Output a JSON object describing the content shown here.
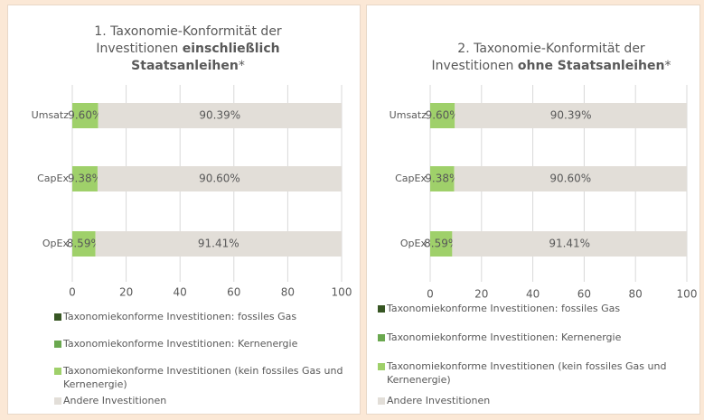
{
  "chart_data": [
    {
      "type": "bar",
      "orientation": "horizontal",
      "stacked": true,
      "title_parts": [
        "1. Taxonomie-Konformität der Investitionen",
        "einschließlich Staatsanleihen",
        "*"
      ],
      "categories": [
        "Umsatz",
        "CapEx",
        "OpEx"
      ],
      "series": [
        {
          "name": "Taxonomiekonforme Investitionen: fossiles Gas",
          "color": "#375623",
          "values": [
            0,
            0,
            0
          ]
        },
        {
          "name": "Taxonomiekonforme Investitionen: Kernenergie",
          "color": "#6aa84f",
          "values": [
            0,
            0,
            0
          ]
        },
        {
          "name": "Taxonomiekonforme Investitionen (kein fossiles Gas und Kernenergie)",
          "color": "#9fd06a",
          "values": [
            9.6,
            9.38,
            8.59
          ],
          "value_labels": [
            "9.60%",
            "9.38%",
            "8.59%"
          ]
        },
        {
          "name": "Andere Investitionen",
          "color": "#e2ded8",
          "values": [
            90.39,
            90.6,
            91.41
          ],
          "value_labels": [
            "90.39%",
            "90.60%",
            "91.41%"
          ]
        }
      ],
      "xlim": [
        0,
        100
      ],
      "xticks": [
        0,
        20,
        40,
        60,
        80,
        100
      ],
      "grid": true
    },
    {
      "type": "bar",
      "orientation": "horizontal",
      "stacked": true,
      "title_parts": [
        "2. Taxonomie-Konformität der Investitionen",
        "ohne Staatsanleihen",
        "*"
      ],
      "categories": [
        "Umsatz",
        "CapEx",
        "OpEx"
      ],
      "series": [
        {
          "name": "Taxonomiekonforme Investitionen: fossiles Gas",
          "color": "#375623",
          "values": [
            0,
            0,
            0
          ]
        },
        {
          "name": "Taxonomiekonforme Investitionen: Kernenergie",
          "color": "#6aa84f",
          "values": [
            0,
            0,
            0
          ]
        },
        {
          "name": "Taxonomiekonforme Investitionen (kein fossiles Gas und Kernenergie)",
          "color": "#9fd06a",
          "values": [
            9.6,
            9.38,
            8.59
          ],
          "value_labels": [
            "9.60%",
            "9.38%",
            "8.59%"
          ]
        },
        {
          "name": "Andere Investitionen",
          "color": "#e2ded8",
          "values": [
            90.39,
            90.6,
            91.41
          ],
          "value_labels": [
            "90.39%",
            "90.60%",
            "91.41%"
          ]
        }
      ],
      "xlim": [
        0,
        100
      ],
      "xticks": [
        0,
        20,
        40,
        60,
        80,
        100
      ],
      "grid": true
    }
  ]
}
